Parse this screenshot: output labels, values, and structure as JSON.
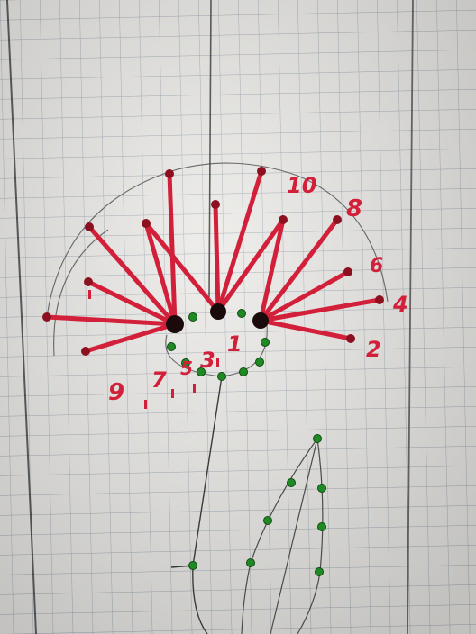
{
  "photo": {
    "subject": "dandelion-string-art-sketch",
    "colors": {
      "paper": "#ecebe8",
      "grid": "#8f9aa8",
      "thread_red": "#d3203a",
      "bead_dark": "#5a0b14",
      "bead_green": "#1f8a24",
      "pencil": "#3f3f3f"
    }
  },
  "annotations": {
    "n10": "10",
    "n8": "8",
    "n6": "6",
    "n4": "4",
    "n2": "2",
    "n1": "1",
    "n3": "3",
    "n5": "5",
    "n7": "7",
    "n9": "9"
  }
}
